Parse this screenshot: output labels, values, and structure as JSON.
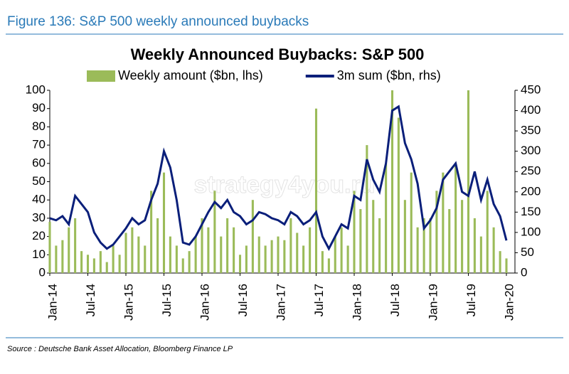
{
  "header": "Figure 136: S&P 500 weekly announced buybacks",
  "source": "Source : Deutsche Bank Asset Allocation, Bloomberg Finance LP",
  "watermark": "strategy4you.ru",
  "chart_data": {
    "type": "bar-line",
    "title": "Weekly Announced Buybacks: S&P 500",
    "x": [
      2014.0,
      2014.083,
      2014.167,
      2014.25,
      2014.333,
      2014.417,
      2014.5,
      2014.583,
      2014.667,
      2014.75,
      2014.833,
      2014.917,
      2015.0,
      2015.083,
      2015.167,
      2015.25,
      2015.333,
      2015.417,
      2015.5,
      2015.583,
      2015.667,
      2015.75,
      2015.833,
      2015.917,
      2016.0,
      2016.083,
      2016.167,
      2016.25,
      2016.333,
      2016.417,
      2016.5,
      2016.583,
      2016.667,
      2016.75,
      2016.833,
      2016.917,
      2017.0,
      2017.083,
      2017.167,
      2017.25,
      2017.333,
      2017.417,
      2017.5,
      2017.583,
      2017.667,
      2017.75,
      2017.833,
      2017.917,
      2018.0,
      2018.083,
      2018.167,
      2018.25,
      2018.333,
      2018.417,
      2018.5,
      2018.583,
      2018.667,
      2018.75,
      2018.833,
      2018.917,
      2019.0,
      2019.083,
      2019.167,
      2019.25,
      2019.333,
      2019.417,
      2019.5,
      2019.583,
      2019.667,
      2019.75,
      2019.833,
      2019.917,
      2020.0
    ],
    "xlim": [
      2014.0,
      2020.0
    ],
    "xticks": [
      {
        "value": 2014.0,
        "label": "Jan-14"
      },
      {
        "value": 2014.5,
        "label": "Jul-14"
      },
      {
        "value": 2015.0,
        "label": "Jan-15"
      },
      {
        "value": 2015.5,
        "label": "Jul-15"
      },
      {
        "value": 2016.0,
        "label": "Jan-16"
      },
      {
        "value": 2016.5,
        "label": "Jul-16"
      },
      {
        "value": 2017.0,
        "label": "Jan-17"
      },
      {
        "value": 2017.5,
        "label": "Jul-17"
      },
      {
        "value": 2018.0,
        "label": "Jan-18"
      },
      {
        "value": 2018.5,
        "label": "Jul-18"
      },
      {
        "value": 2019.0,
        "label": "Jan-19"
      },
      {
        "value": 2019.5,
        "label": "Jul-19"
      },
      {
        "value": 2020.0,
        "label": "Jan-20"
      }
    ],
    "ylim": [
      0,
      100
    ],
    "yticks": [
      0,
      10,
      20,
      30,
      40,
      50,
      60,
      70,
      80,
      90,
      100
    ],
    "y2lim": [
      0,
      450
    ],
    "y2ticks": [
      0,
      50,
      100,
      150,
      200,
      250,
      300,
      350,
      400,
      450
    ],
    "series": [
      {
        "name": "Weekly amount ($bn, lhs)",
        "color": "#9bbb59",
        "values": [
          28,
          15,
          18,
          25,
          30,
          12,
          10,
          8,
          12,
          6,
          15,
          10,
          22,
          25,
          20,
          15,
          45,
          30,
          55,
          20,
          15,
          8,
          12,
          20,
          30,
          25,
          45,
          20,
          30,
          25,
          10,
          15,
          40,
          20,
          15,
          18,
          20,
          18,
          30,
          22,
          15,
          25,
          90,
          12,
          8,
          20,
          25,
          15,
          45,
          35,
          70,
          40,
          30,
          60,
          100,
          85,
          40,
          55,
          25,
          30,
          30,
          45,
          55,
          35,
          60,
          40,
          100,
          30,
          20,
          45,
          25,
          12,
          8
        ]
      },
      {
        "name": "3m sum ($bn, rhs)",
        "color": "#0a1f7a",
        "axis": "y2",
        "values": [
          135,
          130,
          140,
          120,
          190,
          170,
          150,
          100,
          75,
          60,
          70,
          90,
          110,
          135,
          120,
          130,
          180,
          220,
          300,
          260,
          180,
          75,
          70,
          90,
          120,
          150,
          175,
          160,
          180,
          150,
          140,
          120,
          130,
          150,
          145,
          135,
          130,
          120,
          150,
          140,
          120,
          130,
          150,
          90,
          60,
          90,
          120,
          110,
          190,
          180,
          280,
          230,
          200,
          270,
          400,
          410,
          320,
          280,
          220,
          110,
          130,
          160,
          230,
          250,
          270,
          200,
          190,
          250,
          180,
          230,
          170,
          140,
          80
        ]
      }
    ]
  }
}
